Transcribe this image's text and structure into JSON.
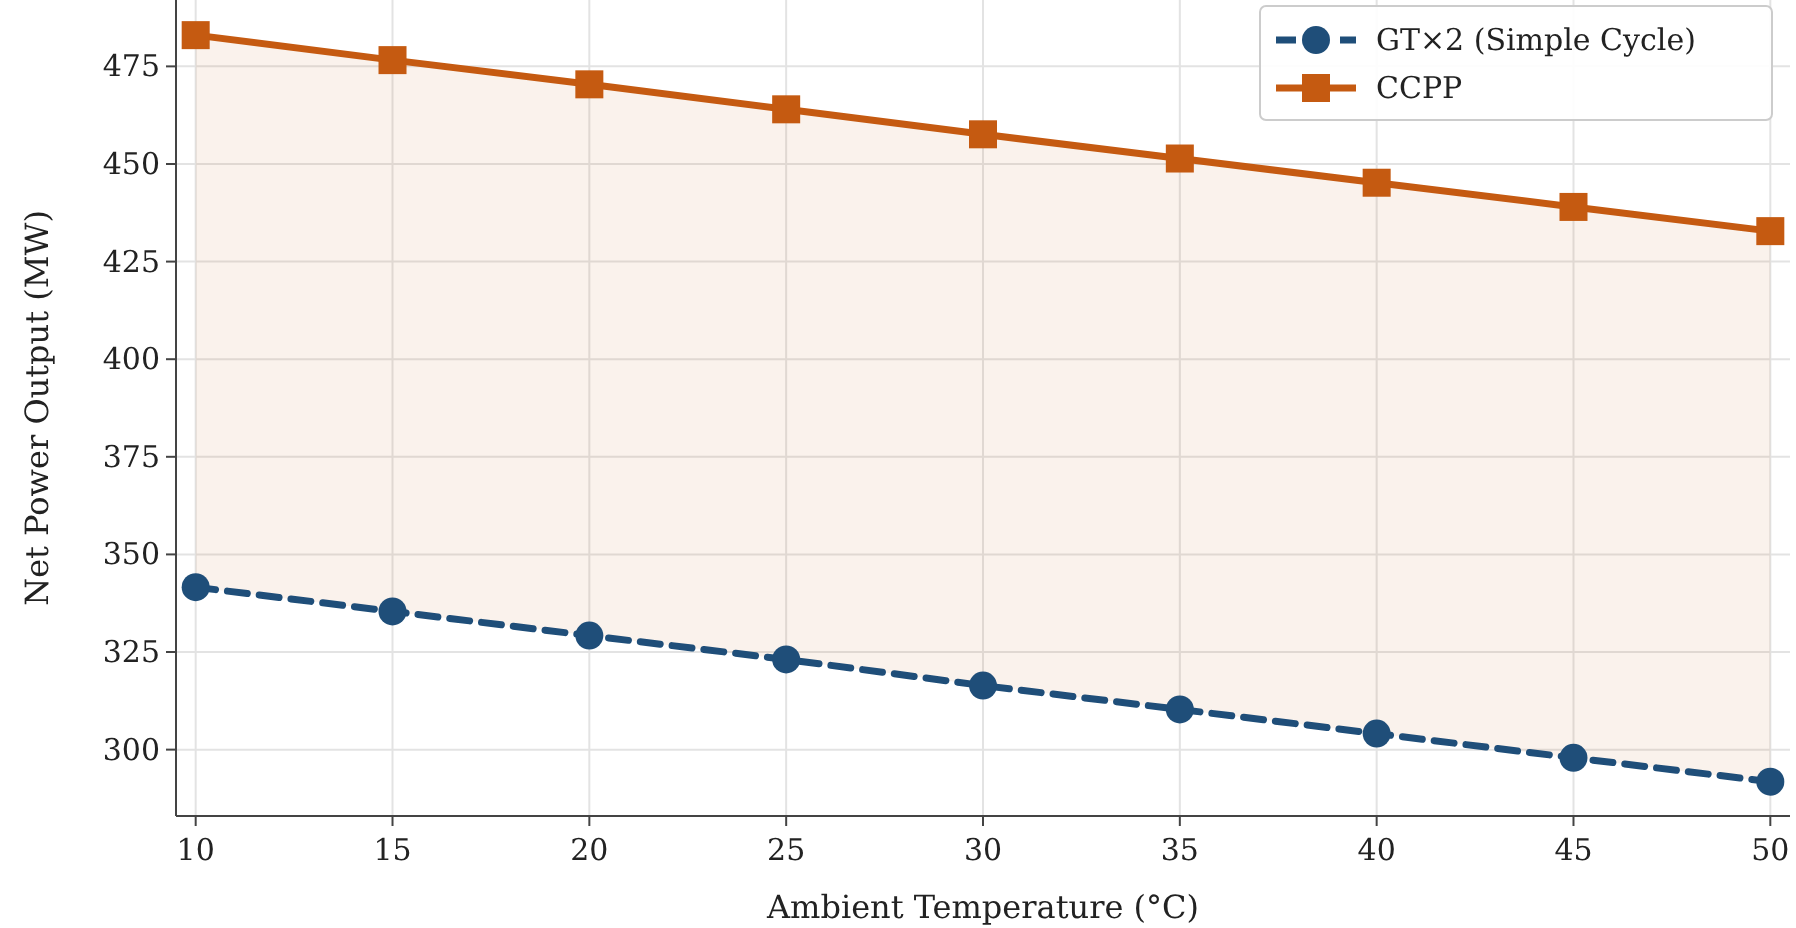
{
  "chart_data": {
    "type": "line",
    "xlabel": "Ambient Temperature (°C)",
    "ylabel": "Net Power Output (MW)",
    "x": [
      10,
      15,
      20,
      25,
      30,
      35,
      40,
      45,
      50
    ],
    "series": [
      {
        "name": "GT×2 (Simple Cycle)",
        "color": "#1f4e79",
        "marker": "circle",
        "line_style": "dashed",
        "values": [
          341.6,
          335.4,
          329.2,
          323.1,
          316.4,
          310.3,
          304.1,
          297.9,
          291.8
        ]
      },
      {
        "name": "CCPP",
        "color": "#c55a11",
        "marker": "square",
        "line_style": "solid",
        "values": [
          483,
          476.6,
          470.4,
          464,
          457.6,
          451.4,
          445.2,
          439,
          432.8
        ],
        "lower": [
          341.6,
          335.4,
          329.2,
          323.1,
          316.4,
          310.3,
          304.1,
          297.9,
          291.8
        ],
        "upper": [
          483,
          476.6,
          470.4,
          464,
          457.6,
          451.4,
          445.2,
          439,
          432.8
        ]
      }
    ],
    "xlim": [
      9.5,
      50.5
    ],
    "xticks": [
      10,
      15,
      20,
      25,
      30,
      35,
      40,
      45,
      50
    ],
    "ylim": [
      283,
      492
    ],
    "yticks": [
      300,
      325,
      350,
      375,
      400,
      425,
      450,
      475
    ],
    "grid": true,
    "legend": "top right"
  }
}
